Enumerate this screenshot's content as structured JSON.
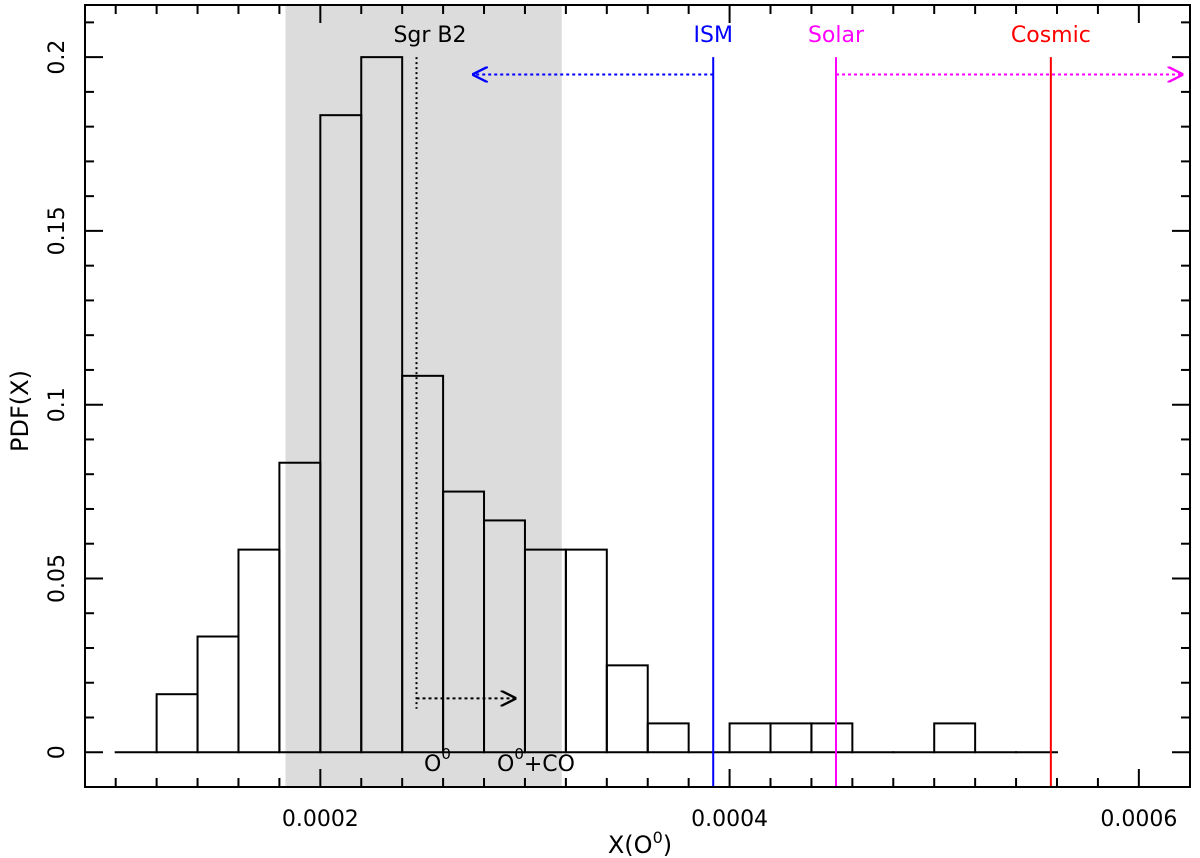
{
  "chart_data": {
    "type": "histogram",
    "xlabel_main": "X(O",
    "xlabel_sup": "0",
    "xlabel_close": ")",
    "ylabel": "PDF(X)",
    "xlim": [
      8.5e-05,
      0.000625
    ],
    "ylim": [
      -0.01,
      0.215
    ],
    "xticks": [
      {
        "value": 0.0002,
        "label": "0.0002"
      },
      {
        "value": 0.0004,
        "label": "0.0004"
      },
      {
        "value": 0.0006,
        "label": "0.0006"
      }
    ],
    "yticks": [
      {
        "value": 0,
        "label": "0"
      },
      {
        "value": 0.05,
        "label": "0.05"
      },
      {
        "value": 0.1,
        "label": "0.1"
      },
      {
        "value": 0.15,
        "label": "0.15"
      },
      {
        "value": 0.2,
        "label": "0.2"
      }
    ],
    "histogram": {
      "edges": [
        0.0001,
        0.00012,
        0.00014,
        0.00016,
        0.00018,
        0.0002,
        0.00022,
        0.00024,
        0.00026,
        0.00028,
        0.0003,
        0.00032,
        0.00034,
        0.00036,
        0.00038,
        0.0004,
        0.00042,
        0.00044,
        0.00046,
        0.00048,
        0.0005,
        0.00052,
        0.00054,
        0.00056
      ],
      "values": [
        0,
        0.0167,
        0.0333,
        0.0583,
        0.0833,
        0.1833,
        0.2,
        0.1083,
        0.075,
        0.0667,
        0.0583,
        0.0583,
        0.025,
        0.0083,
        0,
        0.0083,
        0.0083,
        0.0083,
        0,
        0,
        0.0083,
        0,
        0
      ],
      "color": "#000000"
    },
    "shaded_region": {
      "x0": 0.000183,
      "x1": 0.000318,
      "color": "#dcdcdc"
    },
    "reference_lines": [
      {
        "label": "ISM",
        "x": 0.000392,
        "color": "#0000ff",
        "arrow_direction": "left",
        "arrow_to": 0.000275,
        "arrow_y": 0.195
      },
      {
        "label": "Solar",
        "x": 0.000452,
        "color": "#ff00ff",
        "arrow_direction": "right",
        "arrow_to": 0.000621,
        "arrow_y": 0.195
      },
      {
        "label": "Cosmic",
        "x": 0.000557,
        "color": "#ff0000"
      }
    ],
    "sgr_b2": {
      "label": "Sgr B2",
      "x": 0.000247,
      "line_top": 0.2
    },
    "o0_arrow": {
      "x0": 0.000247,
      "x1": 0.000295,
      "y": 0.0155
    },
    "annotations": {
      "o0": {
        "main": "O",
        "sup": "0"
      },
      "o0co": {
        "main": "O",
        "sup": "0",
        "rest": "+CO"
      }
    }
  }
}
